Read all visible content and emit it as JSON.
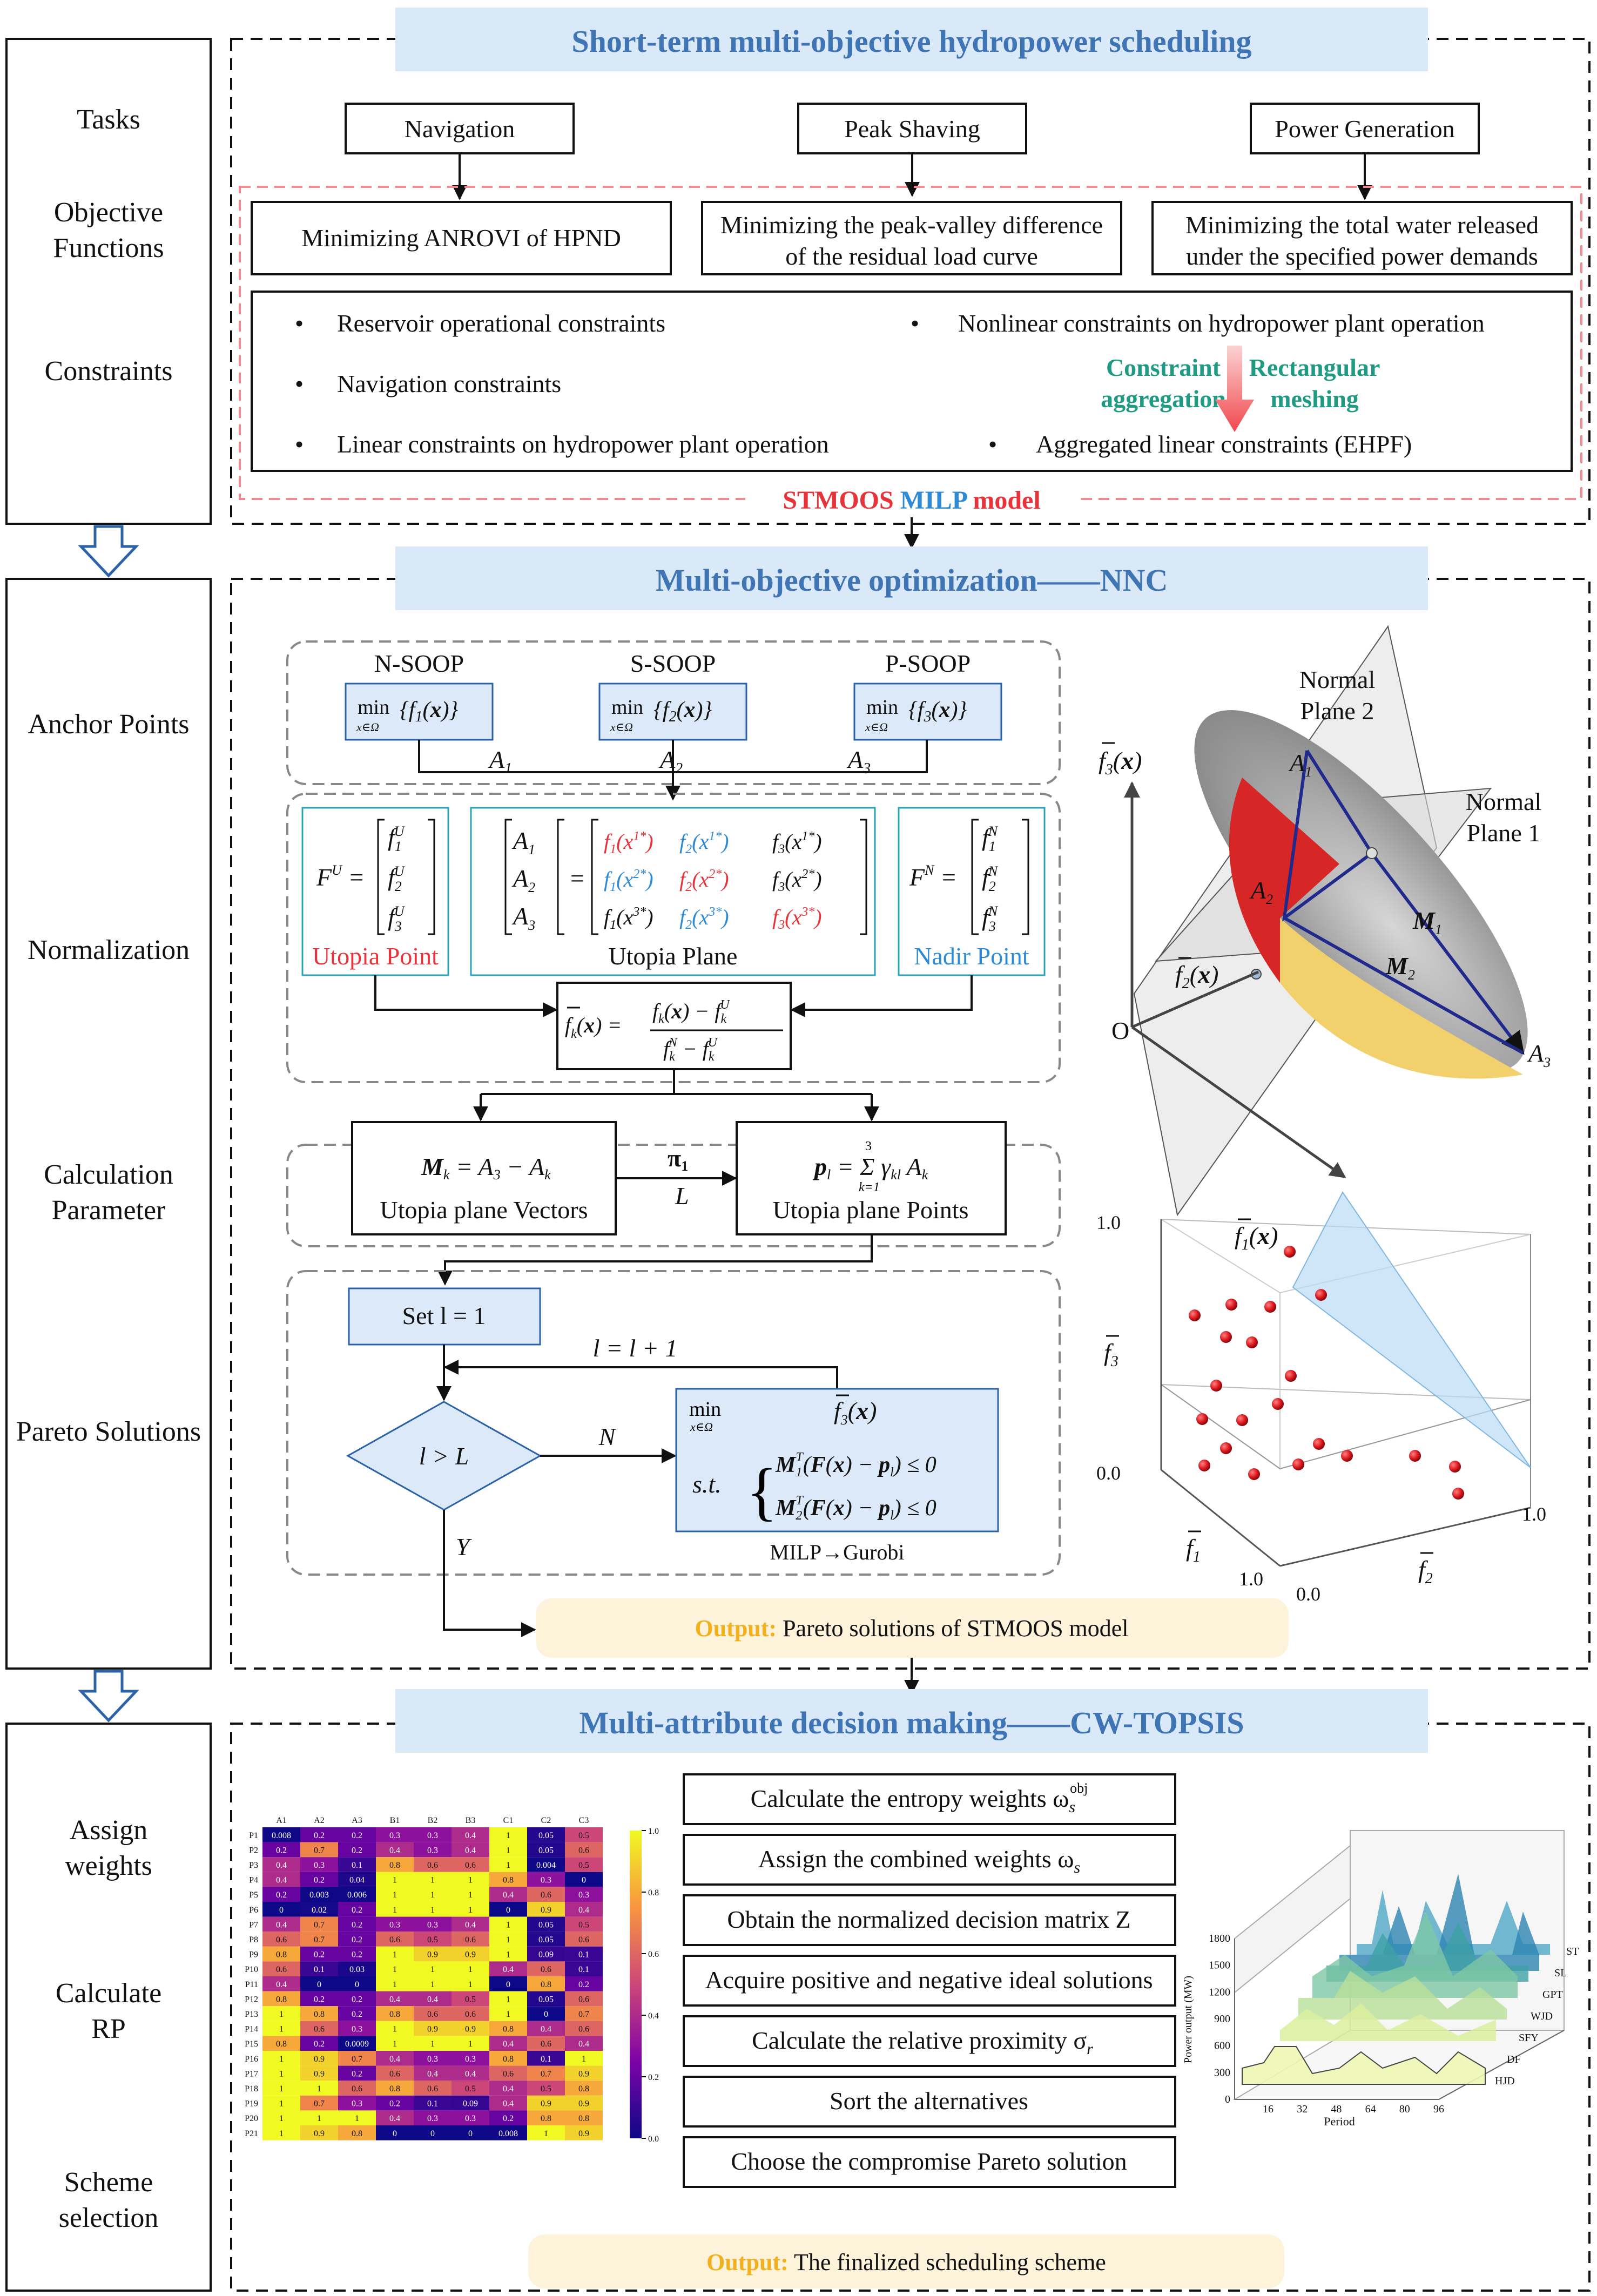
{
  "titles": {
    "section1": "Short-term multi-objective hydropower scheduling",
    "section2": "Multi-objective optimization——NNC",
    "section3": "Multi-attribute decision making——CW-TOPSIS"
  },
  "left_labels": {
    "tasks": "Tasks",
    "objective_1": "Objective",
    "objective_2": "Functions",
    "constraints": "Constraints",
    "anchor": "Anchor Points",
    "normalization": "Normalization",
    "calc_1": "Calculation",
    "calc_2": "Parameter",
    "pareto": "Pareto Solutions",
    "assign_1": "Assign",
    "assign_2": "weights",
    "calcrp_1": "Calculate",
    "calcrp_2": "RP",
    "scheme_1": "Scheme",
    "scheme_2": "selection"
  },
  "tasks": [
    "Navigation",
    "Peak Shaving",
    "Power Generation"
  ],
  "objectives": {
    "obj1": "Minimizing ANROVI of HPND",
    "obj2_1": "Minimizing the peak-valley difference",
    "obj2_2": "of the residual load curve",
    "obj3_1": "Minimizing the total water released",
    "obj3_2": "under the specified power demands"
  },
  "constraints": {
    "c1": "Reservoir operational constraints",
    "c2": "Navigation constraints",
    "c3": "Linear constraints on hydropower plant operation",
    "c4": "Nonlinear constraints on hydropower plant operation",
    "c5": "Aggregated linear constraints (EHPF)",
    "agg_1": "Constraint",
    "agg_2": "aggregation",
    "mesh_1": "Rectangular",
    "mesh_2": "meshing",
    "bullet": "•"
  },
  "model_label": {
    "stmoos": "STMOOS",
    "milp": "MILP",
    "model": "model"
  },
  "nnc": {
    "soop": [
      "N-SOOP",
      "S-SOOP",
      "P-SOOP"
    ],
    "anchors": [
      "A",
      "A",
      "A"
    ],
    "anchor_subs": [
      "1",
      "2",
      "3"
    ],
    "utopia_point": "Utopia Point",
    "utopia_plane": "Utopia Plane",
    "nadir_point": "Nadir Point",
    "utopia_vectors": "Utopia plane Vectors",
    "utopia_points": "Utopia plane Points",
    "pi_label": "π",
    "pi_sub": "1",
    "L_label": "L",
    "set_l": "Set  l = 1",
    "l_update": "l = l + 1",
    "cond": "l > L",
    "N": "N",
    "Y": "Y",
    "min": "min",
    "st": "s.t.",
    "milp_gurobi": "MILP→Gurobi",
    "normal_plane_2a": "Normal",
    "normal_plane_2b": "Plane 2",
    "normal_plane_1a": "Normal",
    "normal_plane_1b": "Plane 1",
    "origin": "O"
  },
  "scatter3d": {
    "ticks": [
      "1.0",
      "0.0",
      "1.0",
      "0.0",
      "1.0"
    ],
    "labels": [
      "f",
      "f",
      "f"
    ],
    "label_subs": [
      "3",
      "1",
      "2"
    ]
  },
  "output": {
    "prefix": "Output:",
    "pareto": "Pareto solutions of STMOOS model",
    "final": "The finalized scheduling scheme"
  },
  "topsis_steps": [
    "Calculate the entropy weights ω",
    "Assign the combined weights ω",
    "Obtain the normalized decision matrix Z",
    "Acquire positive and negative ideal solutions",
    "Calculate the relative proximity σ",
    "Sort the alternatives",
    "Choose the compromise Pareto solution"
  ],
  "heatmap": {
    "cols": [
      "A1",
      "A2",
      "A3",
      "B1",
      "B2",
      "B3",
      "C1",
      "C2",
      "C3"
    ],
    "rows": [
      "P1",
      "P2",
      "P3",
      "P4",
      "P5",
      "P6",
      "P7",
      "P8",
      "P9",
      "P10",
      "P11",
      "P12",
      "P13",
      "P14",
      "P15",
      "P16",
      "P17",
      "P18",
      "P19",
      "P20",
      "P21"
    ],
    "values": [
      [
        0.008,
        0.2,
        0.2,
        0.3,
        0.3,
        0.4,
        1,
        0.05,
        0.5
      ],
      [
        0.2,
        0.7,
        0.2,
        0.4,
        0.3,
        0.4,
        1,
        0.05,
        0.6
      ],
      [
        0.4,
        0.3,
        0.1,
        0.8,
        0.6,
        0.6,
        1,
        0.004,
        0.5
      ],
      [
        0.4,
        0.2,
        0.04,
        1,
        1,
        1,
        0.8,
        0.3,
        0
      ],
      [
        0.2,
        0.003,
        0.006,
        1,
        1,
        1,
        0.4,
        0.6,
        0.3
      ],
      [
        0,
        0.02,
        0.2,
        1,
        1,
        1,
        0,
        0.9,
        0.4
      ],
      [
        0.4,
        0.7,
        0.2,
        0.3,
        0.3,
        0.4,
        1,
        0.05,
        0.5
      ],
      [
        0.6,
        0.7,
        0.2,
        0.6,
        0.5,
        0.6,
        1,
        0.05,
        0.6
      ],
      [
        0.8,
        0.2,
        0.2,
        1,
        0.9,
        0.9,
        1,
        0.09,
        0.1
      ],
      [
        0.6,
        0.1,
        0.03,
        1,
        1,
        1,
        0.4,
        0.6,
        0.1
      ],
      [
        0.4,
        0,
        0,
        1,
        1,
        1,
        0,
        0.8,
        0.2
      ],
      [
        0.8,
        0.2,
        0.2,
        0.4,
        0.4,
        0.5,
        1,
        0.05,
        0.6
      ],
      [
        1,
        0.8,
        0.2,
        0.8,
        0.6,
        0.6,
        1,
        0,
        0.7
      ],
      [
        1,
        0.6,
        0.3,
        1,
        0.9,
        0.9,
        0.8,
        0.4,
        0.6
      ],
      [
        0.8,
        0.2,
        0.0009,
        1,
        1,
        1,
        0.4,
        0.6,
        0.4
      ],
      [
        1,
        0.9,
        0.7,
        0.4,
        0.3,
        0.3,
        0.8,
        0.1,
        1
      ],
      [
        1,
        0.9,
        0.2,
        0.6,
        0.4,
        0.4,
        0.6,
        0.7,
        0.9
      ],
      [
        1,
        1,
        0.6,
        0.8,
        0.6,
        0.5,
        0.4,
        0.5,
        0.8
      ],
      [
        1,
        0.7,
        0.3,
        0.2,
        0.1,
        0.09,
        0.4,
        0.9,
        0.9
      ],
      [
        1,
        1,
        1,
        0.4,
        0.3,
        0.3,
        0.2,
        0.8,
        0.8
      ],
      [
        1,
        0.9,
        0.8,
        0,
        0,
        0,
        0.008,
        1,
        0.9
      ]
    ],
    "colorbar_ticks": [
      "1.0",
      "0.8",
      "0.6",
      "0.4",
      "0.2",
      "0.0"
    ]
  },
  "chart3d": {
    "ylabel": "Power output (MW)",
    "xlabel": "Period",
    "yticks": [
      "1800",
      "1500",
      "1200",
      "900",
      "600",
      "300",
      "0"
    ],
    "xticks": [
      "16",
      "32",
      "48",
      "64",
      "80",
      "96"
    ],
    "series": [
      "ST",
      "SL",
      "GPT",
      "WJD",
      "SFY",
      "DF",
      "HJD"
    ]
  },
  "colors": {
    "section_fill": "#d9e9f8",
    "box_fill": "#dce9f8",
    "accent_red": "#e8333a",
    "accent_blue": "#2c8ad6",
    "accent_green": "#1e9b82",
    "output_fill": "#fdf2da"
  }
}
